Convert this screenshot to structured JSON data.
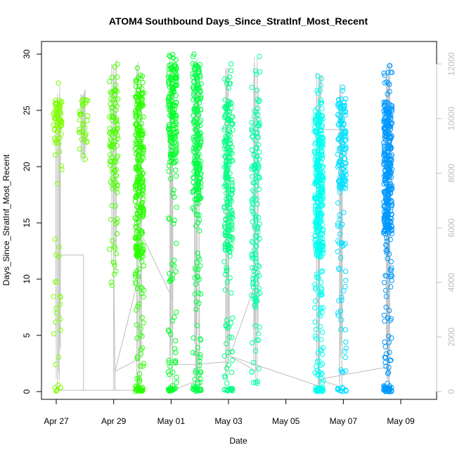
{
  "chart_data": {
    "type": "scatter",
    "title": "ATOM4 Southbound Days_Since_StratInf_Most_Recent",
    "xlabel": "Date",
    "ylabel": "Days_Since_StratInf_Most_Recent",
    "xlim": [
      -0.1,
      12.85
    ],
    "ylim": [
      0,
      30
    ],
    "y2lim": [
      0,
      12000
    ],
    "x_ticks": [
      {
        "value": 0,
        "label": "Apr 27"
      },
      {
        "value": 2,
        "label": "Apr 29"
      },
      {
        "value": 4,
        "label": "May 01"
      },
      {
        "value": 6,
        "label": "May 03"
      },
      {
        "value": 8,
        "label": "May 05"
      },
      {
        "value": 10,
        "label": "May 07"
      },
      {
        "value": 12,
        "label": "May 09"
      }
    ],
    "y_ticks": [
      0,
      5,
      10,
      15,
      20,
      25,
      30
    ],
    "y2_ticks": [
      0,
      2000,
      4000,
      6000,
      8000,
      10000,
      12000
    ],
    "grid": false,
    "clusters": [
      {
        "x": 0.05,
        "color": "#7fff00",
        "n": 90,
        "ymin": 0,
        "ymax": 27.5,
        "focus": [
          22,
          26
        ]
      },
      {
        "x": 0.95,
        "color": "#6aff00",
        "n": 35,
        "ymin": 20.3,
        "ymax": 27,
        "focus": [
          22,
          26
        ]
      },
      {
        "x": 2.0,
        "color": "#4dff00",
        "n": 110,
        "ymin": 9.2,
        "ymax": 29.8,
        "focus": [
          18,
          27
        ]
      },
      {
        "x": 2.9,
        "color": "#2aff00",
        "n": 320,
        "ymin": 0,
        "ymax": 29.3,
        "focus": [
          12,
          27
        ]
      },
      {
        "x": 4.05,
        "color": "#00ff26",
        "n": 210,
        "ymin": 0,
        "ymax": 30,
        "focus": [
          20,
          30
        ]
      },
      {
        "x": 4.9,
        "color": "#00ff46",
        "n": 260,
        "ymin": 0,
        "ymax": 30,
        "focus": [
          17,
          29
        ]
      },
      {
        "x": 6.0,
        "color": "#00ff85",
        "n": 240,
        "ymin": 0,
        "ymax": 29.3,
        "focus": [
          12,
          26
        ]
      },
      {
        "x": 6.95,
        "color": "#00ffa8",
        "n": 150,
        "ymin": 0.5,
        "ymax": 29.8,
        "focus": [
          8,
          25
        ]
      },
      {
        "x": 9.15,
        "color": "#00fff0",
        "n": 380,
        "ymin": 0,
        "ymax": 28.5,
        "focus": [
          12,
          25
        ]
      },
      {
        "x": 9.95,
        "color": "#00e0ff",
        "n": 170,
        "ymin": 0,
        "ymax": 27.5,
        "focus": [
          18,
          26
        ]
      },
      {
        "x": 11.55,
        "color": "#0099ff",
        "n": 380,
        "ymin": 0,
        "ymax": 29.3,
        "focus": [
          14,
          26
        ]
      }
    ],
    "secondary_series": {
      "name": "",
      "color": "#bdbdbd",
      "x": [
        0.0,
        0.05,
        0.05,
        0.95,
        0.95,
        0.05,
        2.0,
        2.0,
        2.05,
        2.9,
        2.9,
        2.05,
        2.9,
        2.95,
        2.95,
        4.05,
        4.05,
        4.0,
        4.05,
        4.9,
        4.9,
        4.85,
        4.95,
        5.0,
        4.9,
        4.05,
        4.9,
        6.0,
        6.0,
        6.05,
        6.95,
        6.95,
        6.05,
        9.15,
        9.15,
        9.2,
        9.25,
        9.15,
        9.95,
        9.95,
        9.15,
        11.55,
        11.55,
        11.6,
        11.55
      ],
      "y": [
        50,
        80,
        5000,
        5000,
        50,
        50,
        50,
        5000,
        50,
        50,
        4300,
        750,
        1200,
        2000,
        5800,
        3400,
        400,
        11800,
        50,
        400,
        11700,
        50,
        11500,
        200,
        1000,
        1000,
        1000,
        1100,
        5300,
        1300,
        4000,
        750,
        1300,
        200,
        10000,
        11500,
        11600,
        9600,
        9600,
        150,
        450,
        900,
        11000,
        200,
        900
      ]
    }
  }
}
